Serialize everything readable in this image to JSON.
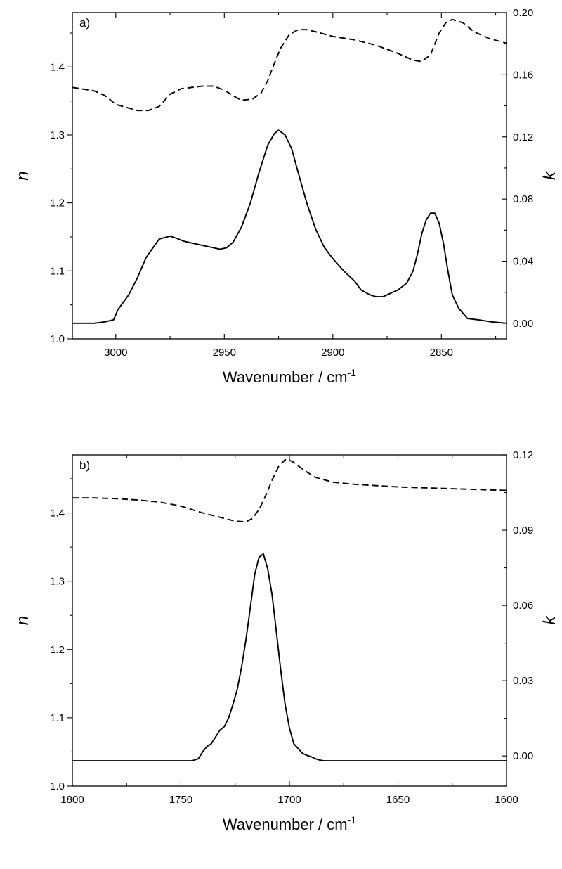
{
  "chart_data": [
    {
      "type": "line",
      "panel_label": "a)",
      "xlabel": "Wavenumber / cm",
      "xlabel_sup": "-1",
      "ylabel_left": "n",
      "ylabel_right": "k",
      "xlim": [
        3020,
        2820
      ],
      "ylim_left": [
        1.0,
        1.48
      ],
      "ylim_right": [
        -0.01,
        0.2
      ],
      "x_ticks": [
        3000,
        2950,
        2900,
        2850
      ],
      "x_tick_labels": [
        "3000",
        "2950",
        "2900",
        "2850"
      ],
      "y_left_ticks": [
        1.0,
        1.1,
        1.2,
        1.3,
        1.4
      ],
      "y_left_tick_labels": [
        "1.0",
        "1.1",
        "1.2",
        "1.3",
        "1.4"
      ],
      "y_right_ticks": [
        0.0,
        0.04,
        0.08,
        0.12,
        0.16,
        0.2
      ],
      "y_right_tick_labels": [
        "0.00",
        "0.04",
        "0.08",
        "0.12",
        "0.16",
        "0.20"
      ],
      "series": [
        {
          "axis": "left",
          "style": "dashed",
          "x": [
            3020,
            3010,
            3005,
            3000,
            2990,
            2985,
            2980,
            2975,
            2970,
            2960,
            2955,
            2950,
            2945,
            2942,
            2937,
            2933,
            2930,
            2927,
            2924,
            2920,
            2916,
            2912,
            2908,
            2900,
            2890,
            2880,
            2870,
            2863,
            2859,
            2855,
            2851,
            2848,
            2845,
            2840,
            2835,
            2828,
            2820
          ],
          "y": [
            1.37,
            1.365,
            1.358,
            1.345,
            1.336,
            1.336,
            1.342,
            1.36,
            1.368,
            1.372,
            1.372,
            1.366,
            1.356,
            1.351,
            1.353,
            1.362,
            1.38,
            1.405,
            1.428,
            1.448,
            1.455,
            1.455,
            1.452,
            1.445,
            1.44,
            1.432,
            1.42,
            1.41,
            1.408,
            1.418,
            1.45,
            1.465,
            1.47,
            1.465,
            1.452,
            1.442,
            1.435
          ]
        },
        {
          "axis": "left",
          "style": "solid",
          "x": [
            3020,
            3010,
            3005,
            3001,
            2999,
            2994,
            2990,
            2986,
            2980,
            2975,
            2972,
            2969,
            2965,
            2955,
            2952,
            2949,
            2946,
            2942,
            2938,
            2934,
            2930,
            2927,
            2925,
            2922,
            2919,
            2916,
            2912,
            2908,
            2904,
            2900,
            2895,
            2890,
            2887,
            2883,
            2880,
            2877,
            2870,
            2866,
            2863,
            2861,
            2859,
            2857,
            2855,
            2853,
            2851,
            2849,
            2847,
            2845,
            2842,
            2838,
            2833,
            2827,
            2820
          ],
          "y": [
            1.023,
            1.023,
            1.025,
            1.028,
            1.043,
            1.065,
            1.09,
            1.12,
            1.147,
            1.151,
            1.148,
            1.144,
            1.141,
            1.134,
            1.132,
            1.134,
            1.142,
            1.165,
            1.2,
            1.245,
            1.285,
            1.302,
            1.307,
            1.3,
            1.28,
            1.245,
            1.2,
            1.162,
            1.135,
            1.118,
            1.1,
            1.085,
            1.072,
            1.065,
            1.062,
            1.062,
            1.072,
            1.082,
            1.1,
            1.125,
            1.155,
            1.175,
            1.185,
            1.185,
            1.17,
            1.14,
            1.1,
            1.065,
            1.045,
            1.03,
            1.028,
            1.025,
            1.023
          ]
        }
      ]
    },
    {
      "type": "line",
      "panel_label": "b)",
      "xlabel": "Wavenumber / cm",
      "xlabel_sup": "-1",
      "ylabel_left": "n",
      "ylabel_right": "k",
      "xlim": [
        1800,
        1600
      ],
      "ylim_left": [
        1.0,
        1.485
      ],
      "ylim_right": [
        -0.012,
        0.12
      ],
      "x_ticks": [
        1800,
        1750,
        1700,
        1650,
        1600
      ],
      "x_tick_labels": [
        "1800",
        "1750",
        "1700",
        "1650",
        "1600"
      ],
      "y_left_ticks": [
        1.0,
        1.1,
        1.2,
        1.3,
        1.4
      ],
      "y_left_tick_labels": [
        "1.0",
        "1.1",
        "1.2",
        "1.3",
        "1.4"
      ],
      "y_right_ticks": [
        0.0,
        0.03,
        0.06,
        0.09,
        0.12
      ],
      "y_right_tick_labels": [
        "0.00",
        "0.03",
        "0.06",
        "0.09",
        "0.12"
      ],
      "series": [
        {
          "axis": "left",
          "style": "dashed",
          "x": [
            1800,
            1790,
            1780,
            1770,
            1760,
            1750,
            1740,
            1730,
            1725,
            1720,
            1717,
            1714,
            1711,
            1708,
            1705,
            1702,
            1699,
            1696,
            1692,
            1688,
            1680,
            1670,
            1660,
            1650,
            1640,
            1620,
            1600
          ],
          "y": [
            1.422,
            1.422,
            1.421,
            1.419,
            1.416,
            1.41,
            1.4,
            1.392,
            1.388,
            1.387,
            1.392,
            1.405,
            1.425,
            1.448,
            1.468,
            1.478,
            1.476,
            1.469,
            1.46,
            1.452,
            1.445,
            1.442,
            1.44,
            1.438,
            1.437,
            1.435,
            1.433
          ]
        },
        {
          "axis": "left",
          "style": "solid",
          "x": [
            1800,
            1780,
            1760,
            1745,
            1742,
            1740,
            1738,
            1736,
            1734,
            1732,
            1730,
            1728,
            1726,
            1724,
            1722,
            1720,
            1718,
            1716,
            1714,
            1712,
            1710,
            1708,
            1706,
            1704,
            1702,
            1700,
            1698,
            1696,
            1694,
            1692,
            1690,
            1688,
            1686,
            1684,
            1682,
            1670,
            1650,
            1630,
            1600
          ],
          "y": [
            1.037,
            1.037,
            1.037,
            1.037,
            1.04,
            1.05,
            1.058,
            1.062,
            1.072,
            1.082,
            1.087,
            1.1,
            1.12,
            1.142,
            1.175,
            1.215,
            1.262,
            1.31,
            1.335,
            1.34,
            1.318,
            1.28,
            1.225,
            1.17,
            1.12,
            1.085,
            1.062,
            1.055,
            1.048,
            1.045,
            1.043,
            1.04,
            1.038,
            1.037,
            1.037,
            1.037,
            1.037,
            1.037,
            1.037
          ]
        }
      ]
    }
  ]
}
